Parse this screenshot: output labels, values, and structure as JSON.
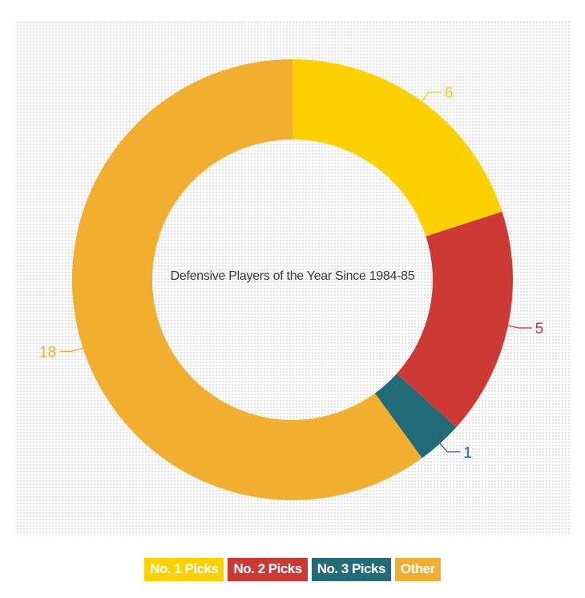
{
  "chart_data": {
    "type": "pie",
    "donut": true,
    "title": "Defensive Players of the Year Since 1984-85",
    "series": [
      {
        "name": "No. 1 Picks",
        "value": 6,
        "color": "#FDD100"
      },
      {
        "name": "No. 2 Picks",
        "value": 5,
        "color": "#CC3A33"
      },
      {
        "name": "No. 3 Picks",
        "value": 1,
        "color": "#226B7B"
      },
      {
        "name": "Other",
        "value": 18,
        "color": "#F2AE2E"
      }
    ],
    "legend_position": "bottom-center"
  }
}
